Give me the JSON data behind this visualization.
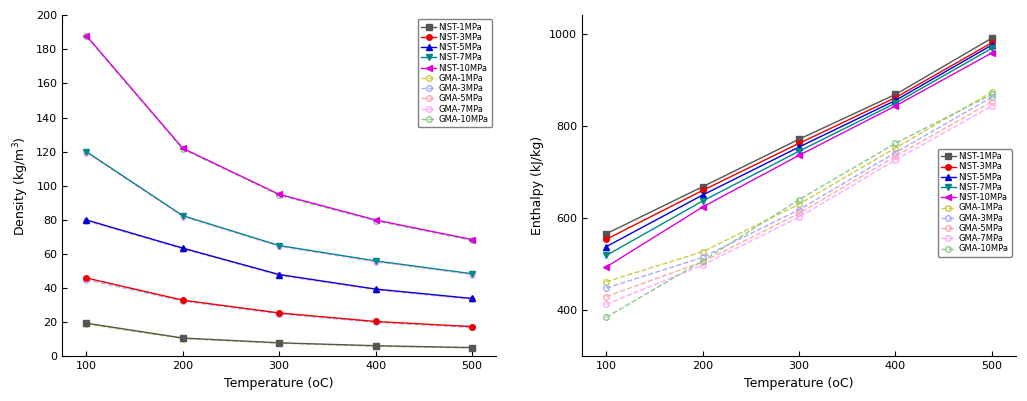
{
  "temp": [
    100,
    200,
    300,
    400,
    500
  ],
  "density_NIST": {
    "1MPa": [
      19.5,
      10.8,
      8.0,
      6.3,
      5.2
    ],
    "3MPa": [
      46.0,
      33.0,
      25.5,
      20.5,
      17.5
    ],
    "5MPa": [
      80.0,
      63.5,
      48.0,
      39.5,
      34.0
    ],
    "7MPa": [
      120.0,
      82.5,
      65.0,
      56.0,
      48.5
    ],
    "10MPa": [
      188.0,
      122.0,
      95.0,
      80.0,
      68.5
    ]
  },
  "density_GMA": {
    "1MPa": [
      19.0,
      10.5,
      7.8,
      6.0,
      5.0
    ],
    "3MPa": [
      45.0,
      32.5,
      25.0,
      20.0,
      17.0
    ],
    "5MPa": [
      79.5,
      63.0,
      47.5,
      39.0,
      33.5
    ],
    "7MPa": [
      119.5,
      82.0,
      64.5,
      55.5,
      48.0
    ],
    "10MPa": [
      187.5,
      121.5,
      94.5,
      79.5,
      68.0
    ]
  },
  "enthalpy_NIST": {
    "1MPa": [
      566,
      668,
      771,
      868,
      990
    ],
    "3MPa": [
      554,
      660,
      762,
      861,
      980
    ],
    "5MPa": [
      538,
      650,
      754,
      855,
      975
    ],
    "7MPa": [
      519,
      637,
      745,
      849,
      968
    ],
    "10MPa": [
      494,
      624,
      736,
      843,
      958
    ]
  },
  "enthalpy_GMA": {
    "1MPa": [
      462,
      527,
      630,
      752,
      873
    ],
    "3MPa": [
      448,
      515,
      618,
      742,
      862
    ],
    "5MPa": [
      430,
      505,
      610,
      734,
      852
    ],
    "7MPa": [
      413,
      498,
      602,
      726,
      843
    ],
    "10MPa": [
      385,
      507,
      640,
      762,
      868
    ]
  },
  "nist_colors": {
    "1MPa": "#555555",
    "3MPa": "#ee0000",
    "5MPa": "#0000dd",
    "7MPa": "#008888",
    "10MPa": "#dd00dd"
  },
  "gma_colors": {
    "1MPa": "#cccc44",
    "3MPa": "#aaaaff",
    "5MPa": "#ffaaaa",
    "7MPa": "#ffaaff",
    "10MPa": "#88cc88"
  },
  "nist_markers": {
    "1MPa": "s",
    "3MPa": "o",
    "5MPa": "^",
    "7MPa": "v",
    "10MPa": "<"
  },
  "gma_markers": {
    "1MPa": "D",
    "3MPa": "o",
    "5MPa": "o",
    "7MPa": "o",
    "10MPa": "o"
  },
  "density_ylim": [
    0,
    200
  ],
  "density_yticks": [
    0,
    20,
    40,
    60,
    80,
    100,
    120,
    140,
    160,
    180,
    200
  ],
  "enthalpy_ylim": [
    300,
    1040
  ],
  "enthalpy_yticks": [
    400,
    600,
    800,
    1000
  ],
  "xlim": [
    75,
    525
  ],
  "xticks": [
    100,
    200,
    300,
    400,
    500
  ],
  "density_ylabel": "Density (kg/m$^3$)",
  "enthalpy_ylabel": "Enthalpy (kJ/kg)",
  "xlabel": "Temperature (oC)",
  "pressures": [
    "1MPa",
    "3MPa",
    "5MPa",
    "7MPa",
    "10MPa"
  ]
}
